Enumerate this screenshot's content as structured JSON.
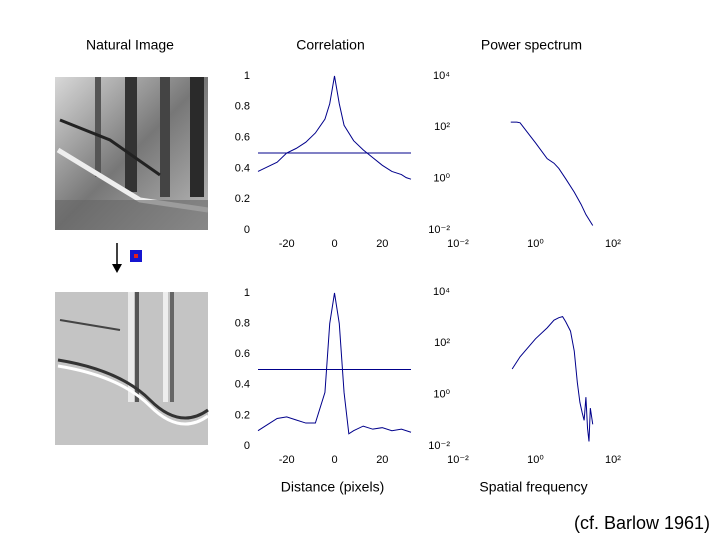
{
  "labels": {
    "natural_image": "Natural Image",
    "citation": "(cf. Barlow 1961)"
  },
  "chart_data": [
    {
      "type": "line",
      "title": "Correlation",
      "color": "#00008b",
      "x": [
        -32,
        -28,
        -24,
        -20,
        -16,
        -12,
        -8,
        -4,
        -2,
        0,
        2,
        4,
        8,
        12,
        16,
        20,
        24,
        28,
        30,
        32
      ],
      "values": [
        0.38,
        0.41,
        0.44,
        0.5,
        0.53,
        0.57,
        0.63,
        0.72,
        0.82,
        1.0,
        0.82,
        0.68,
        0.58,
        0.52,
        0.47,
        0.42,
        0.38,
        0.36,
        0.34,
        0.33
      ],
      "reference_line": 0.5,
      "xlim": [
        -32,
        32
      ],
      "ylim": [
        0,
        1
      ],
      "xticks": [
        -20,
        0,
        20
      ],
      "yticks": [
        0,
        0.2,
        0.4,
        0.6,
        0.8,
        1
      ]
    },
    {
      "type": "line",
      "title": "Power spectrum",
      "color": "#00008b",
      "log_x": true,
      "log_y": true,
      "x": [
        0.23,
        0.33,
        0.4,
        0.7,
        1,
        2,
        3,
        4,
        6,
        10,
        15,
        20,
        30
      ],
      "values": [
        160,
        160,
        150,
        50,
        25,
        6,
        4,
        2.5,
        1,
        0.3,
        0.1,
        0.04,
        0.015
      ],
      "xlim": [
        0.01,
        100
      ],
      "ylim": [
        0.01,
        10000
      ],
      "xticks": [
        {
          "value": 0.01,
          "label": "10⁻²"
        },
        {
          "value": 1,
          "label": "10⁰"
        },
        {
          "value": 100,
          "label": "10²"
        }
      ],
      "yticks": [
        {
          "value": 0.01,
          "label": "10⁻²"
        },
        {
          "value": 1,
          "label": "10⁰"
        },
        {
          "value": 100,
          "label": "10²"
        },
        {
          "value": 10000,
          "label": "10⁴"
        }
      ]
    },
    {
      "type": "line",
      "xlabel": "Distance (pixels)",
      "color": "#00008b",
      "x": [
        -32,
        -28,
        -24,
        -20,
        -16,
        -12,
        -8,
        -4,
        -2,
        0,
        2,
        4,
        6,
        8,
        12,
        16,
        20,
        24,
        28,
        32
      ],
      "values": [
        0.1,
        0.14,
        0.18,
        0.19,
        0.17,
        0.15,
        0.15,
        0.35,
        0.8,
        1.0,
        0.8,
        0.35,
        0.08,
        0.1,
        0.13,
        0.11,
        0.12,
        0.1,
        0.11,
        0.09
      ],
      "reference_line": 0.5,
      "xlim": [
        -32,
        32
      ],
      "ylim": [
        0,
        1
      ],
      "xticks": [
        -20,
        0,
        20
      ],
      "yticks": [
        0,
        0.2,
        0.4,
        0.6,
        0.8,
        1
      ]
    },
    {
      "type": "line",
      "xlabel": "Spatial frequency",
      "color": "#00008b",
      "log_x": true,
      "log_y": true,
      "x": [
        0.25,
        0.4,
        0.7,
        1,
        2,
        3,
        4,
        5,
        6,
        8,
        10,
        12,
        14,
        16,
        18,
        20,
        22,
        24,
        26,
        30
      ],
      "values": [
        10,
        30,
        80,
        150,
        400,
        800,
        1000,
        1100,
        700,
        300,
        50,
        3,
        0.5,
        0.2,
        0.1,
        0.8,
        0.05,
        0.015,
        0.3,
        0.07
      ],
      "xlim": [
        0.01,
        100
      ],
      "ylim": [
        0.01,
        10000
      ],
      "xticks": [
        {
          "value": 0.01,
          "label": "10⁻²"
        },
        {
          "value": 1,
          "label": "10⁰"
        },
        {
          "value": 100,
          "label": "10²"
        }
      ],
      "yticks": [
        {
          "value": 0.01,
          "label": "10⁻²"
        },
        {
          "value": 1,
          "label": "10⁰"
        },
        {
          "value": 100,
          "label": "10²"
        },
        {
          "value": 10000,
          "label": "10⁴"
        }
      ]
    }
  ]
}
